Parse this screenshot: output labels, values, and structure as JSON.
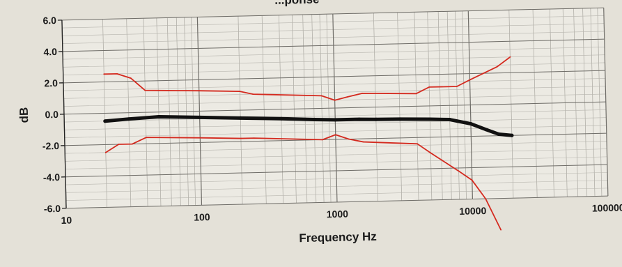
{
  "chart_data": {
    "type": "line",
    "title": "...ponse",
    "xlabel": "Frequency Hz",
    "ylabel": "dB",
    "x_scale": "log",
    "xlim": [
      10,
      100000
    ],
    "ylim": [
      -6,
      6
    ],
    "x_ticks": [
      {
        "value": 10,
        "label": "10"
      },
      {
        "value": 100,
        "label": "100"
      },
      {
        "value": 1000,
        "label": "1000"
      },
      {
        "value": 10000,
        "label": "10000"
      },
      {
        "value": 100000,
        "label": "100000"
      }
    ],
    "y_ticks": [
      {
        "value": 6,
        "label": "6.0"
      },
      {
        "value": 4,
        "label": "4.0"
      },
      {
        "value": 2,
        "label": "2.0"
      },
      {
        "value": 0,
        "label": "0.0"
      },
      {
        "value": -2,
        "label": "-2.0"
      },
      {
        "value": -4,
        "label": "-4.0"
      },
      {
        "value": -6,
        "label": "-6.0"
      }
    ],
    "grid": true,
    "series": [
      {
        "color": "#111111",
        "role": "response",
        "points": [
          [
            20,
            -0.5
          ],
          [
            30,
            -0.4
          ],
          [
            50,
            -0.3
          ],
          [
            100,
            -0.4
          ],
          [
            200,
            -0.5
          ],
          [
            400,
            -0.6
          ],
          [
            700,
            -0.7
          ],
          [
            1000,
            -0.75
          ],
          [
            1500,
            -0.75
          ],
          [
            2000,
            -0.78
          ],
          [
            3000,
            -0.8
          ],
          [
            5000,
            -0.85
          ],
          [
            7000,
            -0.9
          ],
          [
            10000,
            -1.2
          ],
          [
            13000,
            -1.6
          ],
          [
            16000,
            -1.9
          ],
          [
            20000,
            -2.0
          ]
        ]
      },
      {
        "color": "#d42a1f",
        "role": "upper-tolerance",
        "points": [
          [
            20,
            2.5
          ],
          [
            25,
            2.5
          ],
          [
            31.5,
            2.2
          ],
          [
            40,
            1.4
          ],
          [
            100,
            1.3
          ],
          [
            200,
            1.2
          ],
          [
            250,
            1.0
          ],
          [
            800,
            0.8
          ],
          [
            1000,
            0.5
          ],
          [
            1250,
            0.7
          ],
          [
            1600,
            0.9
          ],
          [
            4000,
            0.8
          ],
          [
            5000,
            1.2
          ],
          [
            8000,
            1.2
          ],
          [
            10000,
            1.6
          ],
          [
            16000,
            2.4
          ],
          [
            20000,
            3.0
          ]
        ]
      },
      {
        "color": "#d42a1f",
        "role": "lower-tolerance",
        "points": [
          [
            20,
            -2.5
          ],
          [
            25,
            -2.0
          ],
          [
            31.5,
            -2.0
          ],
          [
            40,
            -1.6
          ],
          [
            100,
            -1.7
          ],
          [
            200,
            -1.8
          ],
          [
            250,
            -1.8
          ],
          [
            800,
            -2.0
          ],
          [
            1000,
            -1.7
          ],
          [
            1250,
            -2.0
          ],
          [
            1600,
            -2.2
          ],
          [
            4000,
            -2.4
          ],
          [
            5000,
            -3.0
          ],
          [
            8000,
            -4.2
          ],
          [
            10000,
            -4.8
          ],
          [
            12500,
            -6.0
          ],
          [
            16000,
            -8.0
          ]
        ]
      }
    ]
  }
}
